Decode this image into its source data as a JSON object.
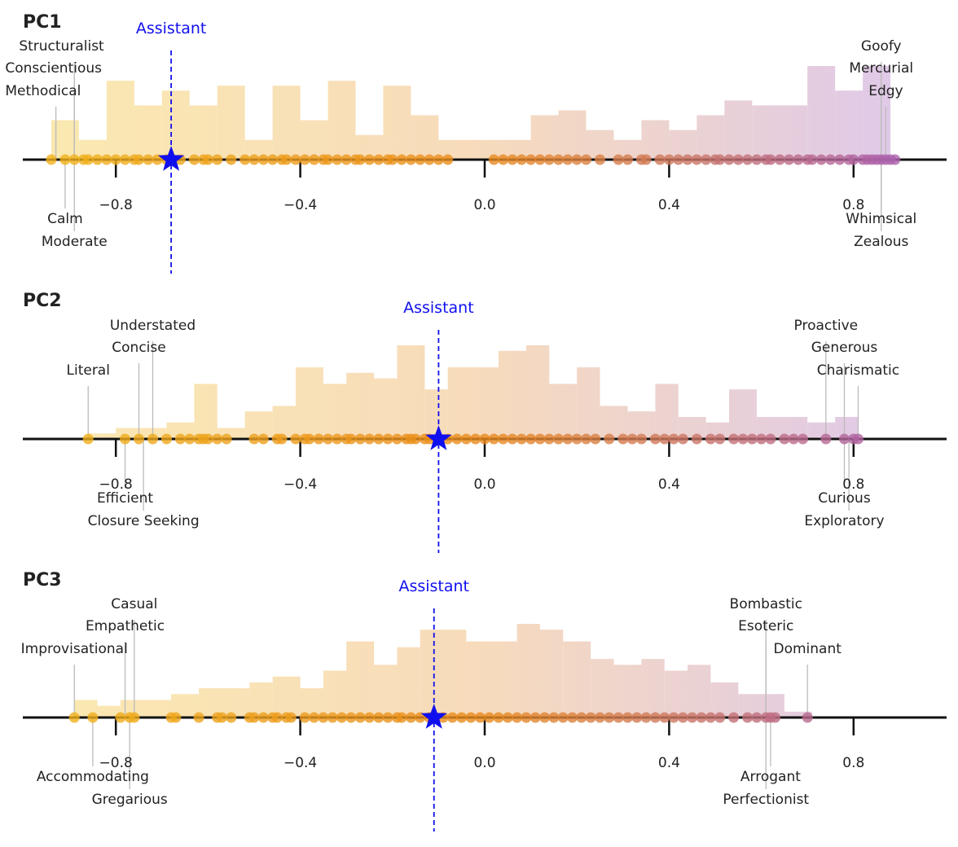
{
  "colors": {
    "assistant": "#1010ee",
    "axis": "#111111",
    "leader": "#bbbbbb",
    "grad_left": "#f2b51a",
    "grad_mid": "#ea8a1c",
    "grad_right": "#a45cc0"
  },
  "chart_data": [
    {
      "type": "histogram",
      "title": "PC1",
      "xlim": [
        -1.0,
        1.0
      ],
      "xticks": [
        -0.8,
        -0.4,
        0.0,
        0.4,
        0.8
      ],
      "xtick_labels": [
        "−0.8",
        "−0.4",
        "0.0",
        "0.4",
        "0.8"
      ],
      "assistant": {
        "label": "Assistant",
        "x": -0.68
      },
      "bins": [
        {
          "x0": -0.94,
          "x1": -0.88,
          "count": 8
        },
        {
          "x0": -0.88,
          "x1": -0.82,
          "count": 4
        },
        {
          "x0": -0.82,
          "x1": -0.76,
          "count": 16
        },
        {
          "x0": -0.76,
          "x1": -0.7,
          "count": 11
        },
        {
          "x0": -0.7,
          "x1": -0.64,
          "count": 14
        },
        {
          "x0": -0.64,
          "x1": -0.58,
          "count": 11
        },
        {
          "x0": -0.58,
          "x1": -0.52,
          "count": 15
        },
        {
          "x0": -0.52,
          "x1": -0.46,
          "count": 4
        },
        {
          "x0": -0.46,
          "x1": -0.4,
          "count": 15
        },
        {
          "x0": -0.4,
          "x1": -0.34,
          "count": 8
        },
        {
          "x0": -0.34,
          "x1": -0.28,
          "count": 16
        },
        {
          "x0": -0.28,
          "x1": -0.22,
          "count": 5
        },
        {
          "x0": -0.22,
          "x1": -0.16,
          "count": 15
        },
        {
          "x0": -0.16,
          "x1": -0.1,
          "count": 9
        },
        {
          "x0": -0.1,
          "x1": 0.1,
          "count": 4
        },
        {
          "x0": 0.1,
          "x1": 0.16,
          "count": 9
        },
        {
          "x0": 0.16,
          "x1": 0.22,
          "count": 10
        },
        {
          "x0": 0.22,
          "x1": 0.28,
          "count": 6
        },
        {
          "x0": 0.28,
          "x1": 0.34,
          "count": 4
        },
        {
          "x0": 0.34,
          "x1": 0.4,
          "count": 8
        },
        {
          "x0": 0.4,
          "x1": 0.46,
          "count": 6
        },
        {
          "x0": 0.46,
          "x1": 0.52,
          "count": 9
        },
        {
          "x0": 0.52,
          "x1": 0.58,
          "count": 12
        },
        {
          "x0": 0.58,
          "x1": 0.7,
          "count": 11
        },
        {
          "x0": 0.7,
          "x1": 0.76,
          "count": 19
        },
        {
          "x0": 0.76,
          "x1": 0.82,
          "count": 14
        },
        {
          "x0": 0.82,
          "x1": 0.88,
          "count": 19
        }
      ],
      "points": [
        -0.94,
        -0.91,
        -0.89,
        -0.87,
        -0.86,
        -0.84,
        -0.82,
        -0.8,
        -0.78,
        -0.76,
        -0.75,
        -0.73,
        -0.71,
        -0.69,
        -0.66,
        -0.63,
        -0.61,
        -0.6,
        -0.58,
        -0.55,
        -0.52,
        -0.5,
        -0.48,
        -0.46,
        -0.44,
        -0.43,
        -0.41,
        -0.39,
        -0.37,
        -0.35,
        -0.34,
        -0.32,
        -0.3,
        -0.28,
        -0.27,
        -0.25,
        -0.23,
        -0.21,
        -0.2,
        -0.18,
        -0.16,
        -0.14,
        -0.12,
        -0.1,
        -0.08,
        0.02,
        0.04,
        0.06,
        0.08,
        0.1,
        0.12,
        0.14,
        0.16,
        0.18,
        0.2,
        0.22,
        0.25,
        0.29,
        0.31,
        0.34,
        0.35,
        0.38,
        0.4,
        0.42,
        0.44,
        0.46,
        0.48,
        0.5,
        0.51,
        0.53,
        0.55,
        0.57,
        0.59,
        0.61,
        0.62,
        0.64,
        0.66,
        0.68,
        0.7,
        0.71,
        0.73,
        0.75,
        0.77,
        0.79,
        0.8,
        0.82,
        0.83,
        0.84,
        0.85,
        0.86,
        0.87,
        0.88,
        0.89
      ],
      "labels_above": [
        {
          "text": "Structuralist",
          "x": -0.89,
          "row": 0,
          "anchor": "start",
          "tx": -1.01
        },
        {
          "text": "Conscientious",
          "x": -0.89,
          "row": 1,
          "anchor": "start",
          "tx": -1.04
        },
        {
          "text": "Methodical",
          "x": -0.93,
          "row": 2,
          "anchor": "start",
          "tx": -1.04
        },
        {
          "text": "Goofy",
          "x": 0.86,
          "row": 0,
          "anchor": "middle",
          "tx": 0.86
        },
        {
          "text": "Mercurial",
          "x": 0.86,
          "row": 1,
          "anchor": "middle",
          "tx": 0.86
        },
        {
          "text": "Edgy",
          "x": 0.87,
          "row": 2,
          "anchor": "middle",
          "tx": 0.87
        }
      ],
      "labels_below": [
        {
          "text": "Calm",
          "x": -0.91,
          "row": 0,
          "anchor": "middle",
          "tx": -0.91
        },
        {
          "text": "Moderate",
          "x": -0.89,
          "row": 1,
          "anchor": "middle",
          "tx": -0.89
        },
        {
          "text": "Whimsical",
          "x": 0.86,
          "row": 0,
          "anchor": "middle",
          "tx": 0.86
        },
        {
          "text": "Zealous",
          "x": 0.86,
          "row": 1,
          "anchor": "middle",
          "tx": 0.86
        }
      ]
    },
    {
      "type": "histogram",
      "title": "PC2",
      "xlim": [
        -1.0,
        1.0
      ],
      "xticks": [
        -0.8,
        -0.4,
        0.0,
        0.4,
        0.8
      ],
      "xtick_labels": [
        "−0.8",
        "−0.4",
        "0.0",
        "0.4",
        "0.8"
      ],
      "assistant": {
        "label": "Assistant",
        "x": -0.1
      },
      "bins": [
        {
          "x0": -0.86,
          "x1": -0.8,
          "count": 1
        },
        {
          "x0": -0.8,
          "x1": -0.69,
          "count": 2
        },
        {
          "x0": -0.69,
          "x1": -0.63,
          "count": 3
        },
        {
          "x0": -0.63,
          "x1": -0.58,
          "count": 10
        },
        {
          "x0": -0.58,
          "x1": -0.52,
          "count": 2
        },
        {
          "x0": -0.52,
          "x1": -0.46,
          "count": 5
        },
        {
          "x0": -0.46,
          "x1": -0.41,
          "count": 6
        },
        {
          "x0": -0.41,
          "x1": -0.35,
          "count": 13
        },
        {
          "x0": -0.35,
          "x1": -0.3,
          "count": 10
        },
        {
          "x0": -0.3,
          "x1": -0.24,
          "count": 12
        },
        {
          "x0": -0.24,
          "x1": -0.19,
          "count": 11
        },
        {
          "x0": -0.19,
          "x1": -0.13,
          "count": 17
        },
        {
          "x0": -0.13,
          "x1": -0.08,
          "count": 9
        },
        {
          "x0": -0.08,
          "x1": 0.03,
          "count": 13
        },
        {
          "x0": 0.03,
          "x1": 0.09,
          "count": 16
        },
        {
          "x0": 0.09,
          "x1": 0.14,
          "count": 17
        },
        {
          "x0": 0.14,
          "x1": 0.2,
          "count": 10
        },
        {
          "x0": 0.2,
          "x1": 0.25,
          "count": 13
        },
        {
          "x0": 0.25,
          "x1": 0.31,
          "count": 6
        },
        {
          "x0": 0.31,
          "x1": 0.37,
          "count": 5
        },
        {
          "x0": 0.37,
          "x1": 0.42,
          "count": 10
        },
        {
          "x0": 0.42,
          "x1": 0.48,
          "count": 4
        },
        {
          "x0": 0.48,
          "x1": 0.53,
          "count": 3
        },
        {
          "x0": 0.53,
          "x1": 0.59,
          "count": 9
        },
        {
          "x0": 0.59,
          "x1": 0.7,
          "count": 4
        },
        {
          "x0": 0.7,
          "x1": 0.76,
          "count": 3
        },
        {
          "x0": 0.76,
          "x1": 0.81,
          "count": 4
        }
      ],
      "points": [
        -0.86,
        -0.78,
        -0.75,
        -0.72,
        -0.69,
        -0.66,
        -0.64,
        -0.62,
        -0.61,
        -0.6,
        -0.58,
        -0.56,
        -0.5,
        -0.48,
        -0.45,
        -0.44,
        -0.41,
        -0.39,
        -0.38,
        -0.36,
        -0.34,
        -0.32,
        -0.3,
        -0.29,
        -0.27,
        -0.25,
        -0.23,
        -0.21,
        -0.19,
        -0.17,
        -0.16,
        -0.15,
        -0.13,
        -0.12,
        -0.08,
        -0.06,
        -0.04,
        -0.02,
        0.0,
        0.02,
        0.04,
        0.06,
        0.08,
        0.1,
        0.12,
        0.14,
        0.16,
        0.18,
        0.2,
        0.22,
        0.24,
        0.27,
        0.3,
        0.32,
        0.34,
        0.37,
        0.39,
        0.41,
        0.43,
        0.46,
        0.49,
        0.51,
        0.54,
        0.56,
        0.58,
        0.6,
        0.62,
        0.65,
        0.67,
        0.69,
        0.74,
        0.78,
        0.8,
        0.81
      ],
      "labels_above": [
        {
          "text": "Understated",
          "x": -0.72,
          "row": 0,
          "anchor": "middle",
          "tx": -0.72
        },
        {
          "text": "Concise",
          "x": -0.75,
          "row": 1,
          "anchor": "middle",
          "tx": -0.75
        },
        {
          "text": "Literal",
          "x": -0.86,
          "row": 2,
          "anchor": "middle",
          "tx": -0.86
        },
        {
          "text": "Proactive",
          "x": 0.74,
          "row": 0,
          "anchor": "middle",
          "tx": 0.74
        },
        {
          "text": "Generous",
          "x": 0.78,
          "row": 1,
          "anchor": "middle",
          "tx": 0.78
        },
        {
          "text": "Charismatic",
          "x": 0.81,
          "row": 2,
          "anchor": "middle",
          "tx": 0.81
        }
      ],
      "labels_below": [
        {
          "text": "Efficient",
          "x": -0.78,
          "row": 0,
          "anchor": "middle",
          "tx": -0.78
        },
        {
          "text": "Closure Seeking",
          "x": -0.74,
          "row": 1,
          "anchor": "middle",
          "tx": -0.74
        },
        {
          "text": "Curious",
          "x": 0.78,
          "row": 0,
          "anchor": "middle",
          "tx": 0.78
        },
        {
          "text": "Exploratory",
          "x": 0.79,
          "row": 1,
          "anchor": "middle",
          "tx": 0.78
        }
      ]
    },
    {
      "type": "histogram",
      "title": "PC3",
      "xlim": [
        -1.0,
        1.0
      ],
      "xticks": [
        -0.8,
        -0.4,
        0.0,
        0.4,
        0.8
      ],
      "xtick_labels": [
        "−0.8",
        "−0.4",
        "0.0",
        "0.4",
        "0.8"
      ],
      "assistant": {
        "label": "Assistant",
        "x": -0.11
      },
      "bins": [
        {
          "x0": -0.89,
          "x1": -0.84,
          "count": 3
        },
        {
          "x0": -0.84,
          "x1": -0.79,
          "count": 2
        },
        {
          "x0": -0.79,
          "x1": -0.68,
          "count": 3
        },
        {
          "x0": -0.68,
          "x1": -0.62,
          "count": 4
        },
        {
          "x0": -0.62,
          "x1": -0.51,
          "count": 5
        },
        {
          "x0": -0.51,
          "x1": -0.46,
          "count": 6
        },
        {
          "x0": -0.46,
          "x1": -0.4,
          "count": 7
        },
        {
          "x0": -0.4,
          "x1": -0.35,
          "count": 5
        },
        {
          "x0": -0.35,
          "x1": -0.3,
          "count": 8
        },
        {
          "x0": -0.3,
          "x1": -0.24,
          "count": 13
        },
        {
          "x0": -0.24,
          "x1": -0.19,
          "count": 9
        },
        {
          "x0": -0.19,
          "x1": -0.14,
          "count": 12
        },
        {
          "x0": -0.14,
          "x1": -0.04,
          "count": 15
        },
        {
          "x0": -0.04,
          "x1": 0.07,
          "count": 13
        },
        {
          "x0": 0.07,
          "x1": 0.12,
          "count": 16
        },
        {
          "x0": 0.12,
          "x1": 0.17,
          "count": 15
        },
        {
          "x0": 0.17,
          "x1": 0.23,
          "count": 13
        },
        {
          "x0": 0.23,
          "x1": 0.28,
          "count": 10
        },
        {
          "x0": 0.28,
          "x1": 0.34,
          "count": 9
        },
        {
          "x0": 0.34,
          "x1": 0.39,
          "count": 10
        },
        {
          "x0": 0.39,
          "x1": 0.44,
          "count": 8
        },
        {
          "x0": 0.44,
          "x1": 0.49,
          "count": 9
        },
        {
          "x0": 0.49,
          "x1": 0.55,
          "count": 6
        },
        {
          "x0": 0.55,
          "x1": 0.65,
          "count": 4
        },
        {
          "x0": 0.65,
          "x1": 0.71,
          "count": 1
        }
      ],
      "points": [
        -0.89,
        -0.85,
        -0.79,
        -0.77,
        -0.76,
        -0.68,
        -0.67,
        -0.62,
        -0.58,
        -0.57,
        -0.55,
        -0.51,
        -0.5,
        -0.48,
        -0.46,
        -0.45,
        -0.43,
        -0.42,
        -0.39,
        -0.37,
        -0.35,
        -0.33,
        -0.31,
        -0.29,
        -0.27,
        -0.25,
        -0.23,
        -0.21,
        -0.19,
        -0.18,
        -0.16,
        -0.14,
        -0.12,
        -0.09,
        -0.07,
        -0.05,
        -0.03,
        -0.01,
        0.01,
        0.03,
        0.05,
        0.07,
        0.09,
        0.11,
        0.13,
        0.15,
        0.17,
        0.19,
        0.21,
        0.23,
        0.25,
        0.27,
        0.29,
        0.31,
        0.33,
        0.35,
        0.37,
        0.39,
        0.41,
        0.43,
        0.45,
        0.47,
        0.49,
        0.51,
        0.54,
        0.57,
        0.59,
        0.61,
        0.62,
        0.63,
        0.7
      ],
      "labels_above": [
        {
          "text": "Casual",
          "x": -0.76,
          "row": 0,
          "anchor": "middle",
          "tx": -0.76
        },
        {
          "text": "Empathetic",
          "x": -0.78,
          "row": 1,
          "anchor": "middle",
          "tx": -0.78
        },
        {
          "text": "Improvisational",
          "x": -0.89,
          "row": 2,
          "anchor": "middle",
          "tx": -0.89
        },
        {
          "text": "Bombastic",
          "x": 0.61,
          "row": 0,
          "anchor": "middle",
          "tx": 0.61
        },
        {
          "text": "Esoteric",
          "x": 0.61,
          "row": 1,
          "anchor": "middle",
          "tx": 0.61
        },
        {
          "text": "Dominant",
          "x": 0.7,
          "row": 2,
          "anchor": "middle",
          "tx": 0.7
        }
      ],
      "labels_below": [
        {
          "text": "Accommodating",
          "x": -0.85,
          "row": 0,
          "anchor": "middle",
          "tx": -0.85
        },
        {
          "text": "Gregarious",
          "x": -0.77,
          "row": 1,
          "anchor": "middle",
          "tx": -0.77
        },
        {
          "text": "Arrogant",
          "x": 0.62,
          "row": 0,
          "anchor": "middle",
          "tx": 0.62
        },
        {
          "text": "Perfectionist",
          "x": 0.61,
          "row": 1,
          "anchor": "middle",
          "tx": 0.61
        }
      ]
    }
  ]
}
